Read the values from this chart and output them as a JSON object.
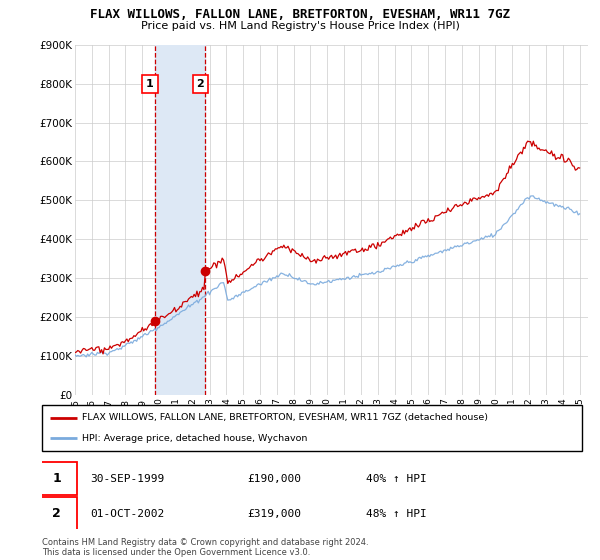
{
  "title": "FLAX WILLOWS, FALLON LANE, BRETFORTON, EVESHAM, WR11 7GZ",
  "subtitle": "Price paid vs. HM Land Registry's House Price Index (HPI)",
  "ylabel_ticks": [
    "£0",
    "£100K",
    "£200K",
    "£300K",
    "£400K",
    "£500K",
    "£600K",
    "£700K",
    "£800K",
    "£900K"
  ],
  "ylim": [
    0,
    900000
  ],
  "xlim_start": 1995.0,
  "xlim_end": 2025.5,
  "red_line_color": "#cc0000",
  "blue_line_color": "#7aaadd",
  "shade_color": "#dde8f5",
  "vline_color": "#cc0000",
  "legend_label_red": "FLAX WILLOWS, FALLON LANE, BRETFORTON, EVESHAM, WR11 7GZ (detached house)",
  "legend_label_blue": "HPI: Average price, detached house, Wychavon",
  "transaction1_date": "30-SEP-1999",
  "transaction1_price": "£190,000",
  "transaction1_hpi": "40% ↑ HPI",
  "transaction1_x": 1999.75,
  "transaction1_y": 190000,
  "transaction2_date": "01-OCT-2002",
  "transaction2_price": "£319,000",
  "transaction2_hpi": "48% ↑ HPI",
  "transaction2_x": 2002.75,
  "transaction2_y": 319000,
  "footer": "Contains HM Land Registry data © Crown copyright and database right 2024.\nThis data is licensed under the Open Government Licence v3.0.",
  "xtick_years": [
    1995,
    1996,
    1997,
    1998,
    1999,
    2000,
    2001,
    2002,
    2003,
    2004,
    2005,
    2006,
    2007,
    2008,
    2009,
    2010,
    2011,
    2012,
    2013,
    2014,
    2015,
    2016,
    2017,
    2018,
    2019,
    2020,
    2021,
    2022,
    2023,
    2024,
    2025
  ]
}
